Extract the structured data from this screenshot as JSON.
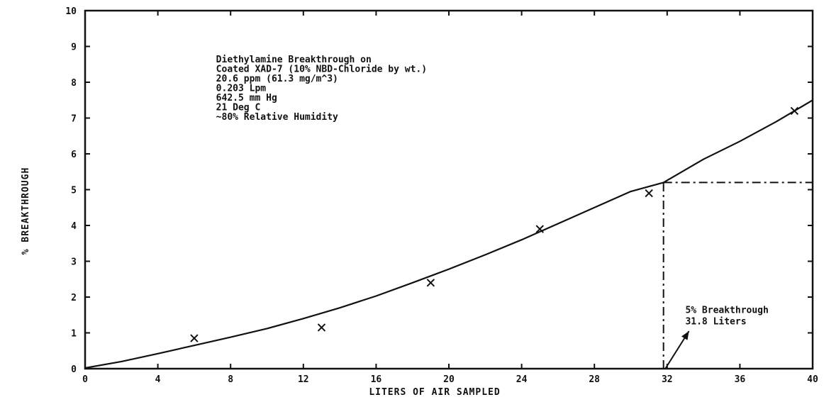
{
  "chart_data": {
    "type": "line",
    "title": "",
    "xlabel": "LITERS OF AIR SAMPLED",
    "ylabel": "% BREAKTHROUGH",
    "xlim": [
      0,
      40
    ],
    "ylim": [
      0,
      10
    ],
    "x_ticks": [
      "0",
      "4",
      "8",
      "12",
      "16",
      "20",
      "24",
      "28",
      "32",
      "36",
      "40"
    ],
    "y_ticks": [
      "0",
      "1",
      "2",
      "3",
      "4",
      "5",
      "6",
      "7",
      "8",
      "9",
      "10"
    ],
    "grid": false,
    "series": [
      {
        "style": "solid-line",
        "x": [
          0,
          2,
          4,
          6,
          8,
          10,
          12,
          14,
          16,
          18,
          20,
          22,
          24,
          26,
          28,
          30,
          31.8,
          34,
          36,
          38,
          40
        ],
        "values": [
          0.02,
          0.2,
          0.42,
          0.65,
          0.88,
          1.12,
          1.4,
          1.7,
          2.03,
          2.4,
          2.78,
          3.18,
          3.6,
          4.05,
          4.5,
          4.95,
          5.2,
          5.85,
          6.35,
          6.9,
          7.5
        ]
      },
      {
        "style": "x-markers",
        "x": [
          6,
          13,
          19,
          25,
          31,
          39
        ],
        "values": [
          0.85,
          1.15,
          2.4,
          3.9,
          4.9,
          7.2
        ]
      }
    ],
    "reference_lines": {
      "breakthrough_x": 31.8,
      "breakthrough_y": 5.2,
      "style": "dash-dot"
    },
    "annotation_block": [
      "Diethylamine Breakthrough on",
      "Coated XAD-7 (10% NBD-Chloride by wt.)",
      "20.6 ppm (61.3 mg/m^3)",
      "0.203 Lpm",
      "642.5 mm Hg",
      "21 Deg C",
      "~80% Relative Humidity"
    ],
    "callout": {
      "lines": [
        "5% Breakthrough",
        "31.8 Liters"
      ]
    }
  }
}
